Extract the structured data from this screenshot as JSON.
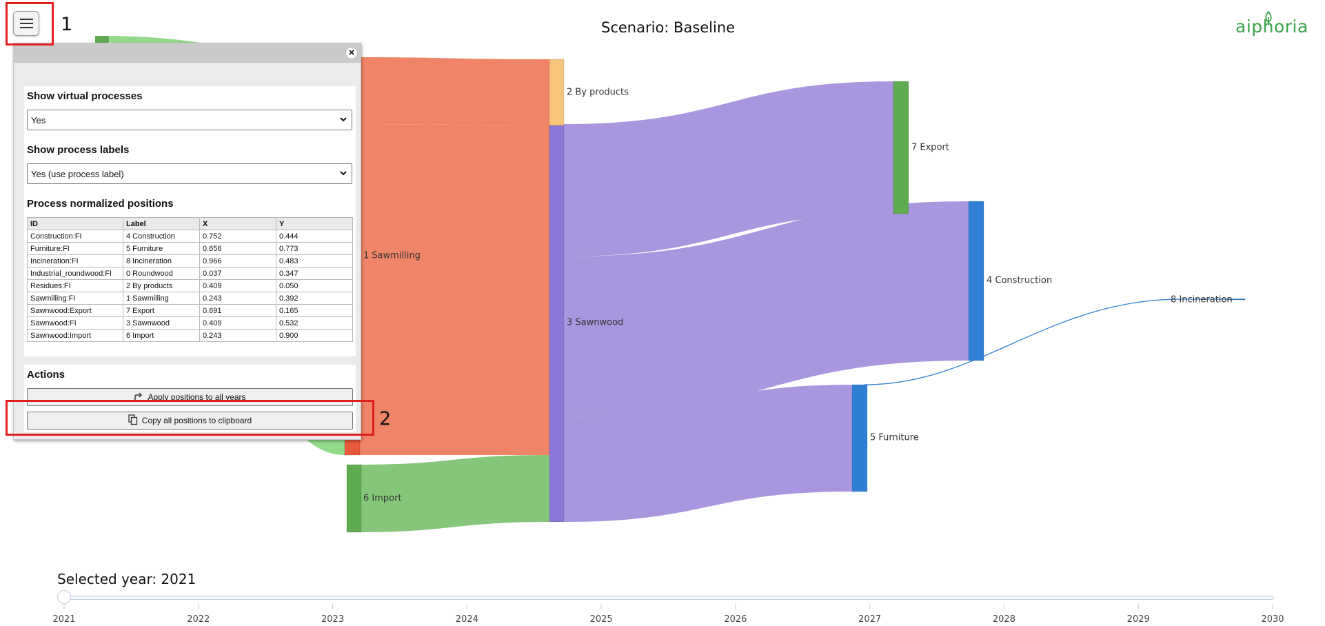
{
  "header": {
    "title": "Scenario: Baseline",
    "logo_text": "aiphoria"
  },
  "highlights": {
    "one": "1",
    "two": "2"
  },
  "panel": {
    "virtual": {
      "title": "Show virtual processes",
      "selected": "Yes"
    },
    "labels": {
      "title": "Show process labels",
      "selected": "Yes (use process label)"
    },
    "positions": {
      "title": "Process normalized positions",
      "columns": [
        "ID",
        "Label",
        "X",
        "Y"
      ],
      "rows": [
        [
          "Construction:FI",
          "4 Construction",
          "0.752",
          "0.444"
        ],
        [
          "Furniture:FI",
          "5 Furniture",
          "0.656",
          "0.773"
        ],
        [
          "Incineration:FI",
          "8 Incineration",
          "0.966",
          "0.483"
        ],
        [
          "Industrial_roundwood:FI",
          "0 Roundwood",
          "0.037",
          "0.347"
        ],
        [
          "Residues:FI",
          "2 By products",
          "0.409",
          "0.050"
        ],
        [
          "Sawmilling:FI",
          "1 Sawmilling",
          "0.243",
          "0.392"
        ],
        [
          "Sawnwood:Export",
          "7 Export",
          "0.691",
          "0.165"
        ],
        [
          "Sawnwood:FI",
          "3 Sawnwood",
          "0.409",
          "0.532"
        ],
        [
          "Sawnwood:Import",
          "6 Import",
          "0.243",
          "0.900"
        ]
      ]
    },
    "actions": {
      "title": "Actions",
      "apply_label": "Apply positions to all years",
      "copy_label": "Copy all positions to clipboard"
    }
  },
  "sankey": {
    "nodes": [
      {
        "label": "1 Sawmilling",
        "color": "#e8583b"
      },
      {
        "label": "2 By products",
        "color": "#f8c37c"
      },
      {
        "label": "3 Sawnwood",
        "color": "#8b77d6"
      },
      {
        "label": "7 Export",
        "color": "#5fab52"
      },
      {
        "label": "4 Construction",
        "color": "#2f7fd5"
      },
      {
        "label": "5 Furniture",
        "color": "#2f7fd5"
      },
      {
        "label": "6 Import",
        "color": "#5fab52"
      },
      {
        "label": "8 Incineration",
        "color": "#2f7fd5"
      }
    ],
    "link_colors": {
      "from_sawmilling": "#f08468",
      "from_sawnwood": "#a897de",
      "from_import": "#86c67a",
      "from_roundwood": "#93d98a",
      "to_incineration": "#2f7fd5"
    }
  },
  "timeline": {
    "selected_label": "Selected year: 2021",
    "selected_value": 2021,
    "years": [
      "2021",
      "2022",
      "2023",
      "2024",
      "2025",
      "2026",
      "2027",
      "2028",
      "2029",
      "2030"
    ]
  }
}
